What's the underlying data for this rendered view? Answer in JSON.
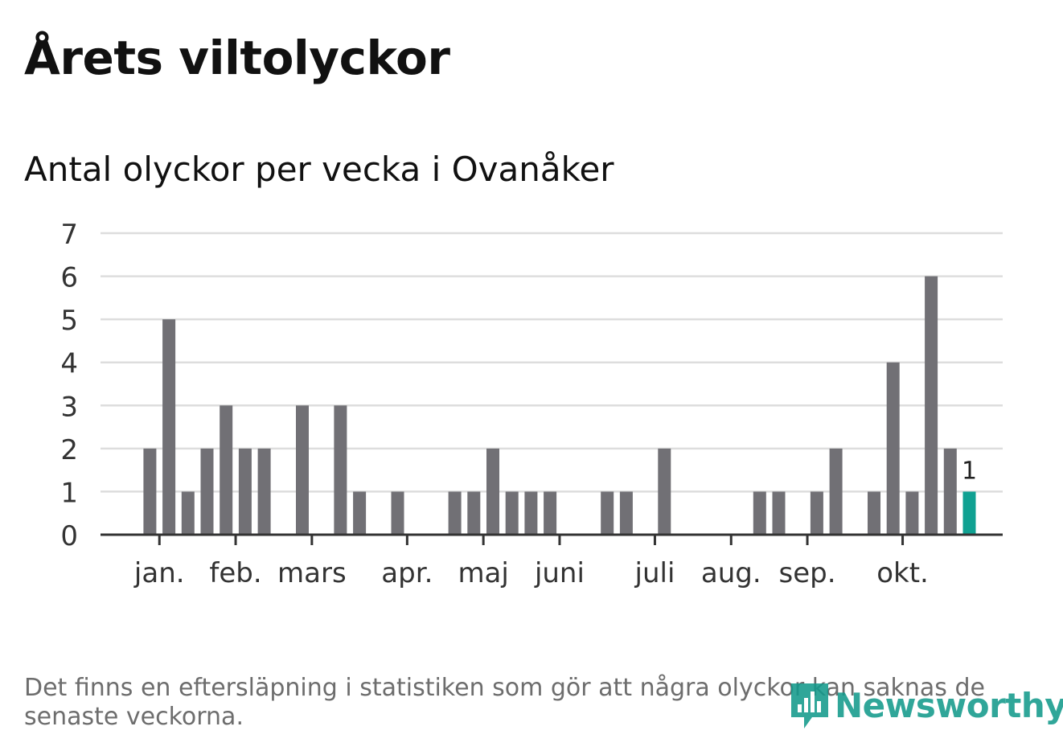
{
  "title": "Årets viltolyckor",
  "subtitle": "Antal olyckor per vecka i Ovanåker",
  "footnote": "Det finns en eftersläpning i statistiken som gör att några olyckor kan saknas de senaste veckorna.",
  "brand": {
    "name": "Newsworthy",
    "icon": "newsworthy-logo-icon"
  },
  "colors": {
    "bar": "#717075",
    "highlight": "#10a192",
    "grid": "#dddddd",
    "axis": "#333333",
    "text": "#333333"
  },
  "chart_data": {
    "type": "bar",
    "title": "Antal olyckor per vecka i Ovanåker",
    "xlabel": "",
    "ylabel": "",
    "ylim": [
      0,
      7
    ],
    "yticks": [
      0,
      1,
      2,
      3,
      4,
      5,
      6,
      7
    ],
    "grid": true,
    "weeks": [
      1,
      2,
      3,
      4,
      5,
      6,
      7,
      8,
      9,
      10,
      11,
      12,
      13,
      14,
      15,
      16,
      17,
      18,
      19,
      20,
      21,
      22,
      23,
      24,
      25,
      26,
      27,
      28,
      29,
      30,
      31,
      32,
      33,
      34,
      35,
      36,
      37,
      38,
      39,
      40,
      41,
      42,
      43,
      44,
      45,
      46,
      47
    ],
    "values": [
      0,
      0,
      2,
      5,
      1,
      2,
      3,
      2,
      2,
      0,
      3,
      0,
      3,
      1,
      0,
      1,
      0,
      0,
      1,
      1,
      2,
      1,
      1,
      1,
      0,
      0,
      1,
      1,
      0,
      2,
      0,
      0,
      0,
      0,
      1,
      1,
      0,
      1,
      2,
      0,
      1,
      4,
      1,
      6,
      2,
      1,
      0
    ],
    "highlight_week": 46,
    "highlight_label": "1",
    "month_ticks": [
      {
        "label": "jan.",
        "week": 3.5
      },
      {
        "label": "feb.",
        "week": 7.5
      },
      {
        "label": "mars",
        "week": 11.5
      },
      {
        "label": "apr.",
        "week": 16.5
      },
      {
        "label": "maj",
        "week": 20.5
      },
      {
        "label": "juni",
        "week": 24.5
      },
      {
        "label": "juli",
        "week": 29.5
      },
      {
        "label": "aug.",
        "week": 33.5
      },
      {
        "label": "sep.",
        "week": 37.5
      },
      {
        "label": "okt.",
        "week": 42.5
      }
    ]
  }
}
